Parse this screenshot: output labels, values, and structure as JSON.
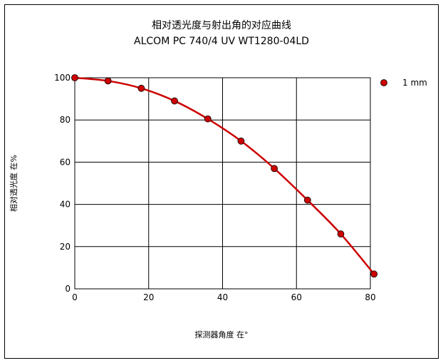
{
  "chart_data": {
    "type": "line",
    "title": "相对透光度与射出角的对应曲线",
    "subtitle": "ALCOM PC 740/4 UV WT1280-04LD",
    "xlabel": "探测器角度 在°",
    "ylabel": "相对透光度 在%",
    "xlim": [
      0,
      80
    ],
    "ylim": [
      0,
      100
    ],
    "xticks": [
      "0",
      "20",
      "40",
      "60",
      "80"
    ],
    "yticks": [
      "0",
      "20",
      "40",
      "60",
      "80",
      "100"
    ],
    "grid": true,
    "legend_position": "top-right",
    "series": [
      {
        "name": "1 mm",
        "color": "#cc0000",
        "x": [
          0,
          9,
          18,
          27,
          36,
          45,
          54,
          63,
          72,
          81
        ],
        "y": [
          100,
          98.5,
          95,
          89,
          80.5,
          70,
          57,
          42,
          26,
          7
        ]
      }
    ]
  }
}
